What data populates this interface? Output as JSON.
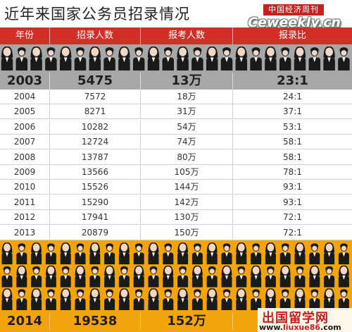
{
  "title": "近年来国家公务员招录情况",
  "logo": {
    "name": "中国经济周刊",
    "site": "Ceweekly.cn"
  },
  "columns": [
    "年份",
    "招录人数",
    "报考人数",
    "报录比"
  ],
  "highlight_top": {
    "year": "2003",
    "hired": "5475",
    "applicants": "13万",
    "ratio": "23:1"
  },
  "rows": [
    {
      "year": "2004",
      "hired": "7572",
      "applicants": "18万",
      "ratio": "24:1"
    },
    {
      "year": "2005",
      "hired": "8271",
      "applicants": "31万",
      "ratio": "37:1"
    },
    {
      "year": "2006",
      "hired": "10282",
      "applicants": "54万",
      "ratio": "53:1"
    },
    {
      "year": "2007",
      "hired": "12724",
      "applicants": "74万",
      "ratio": "58:1"
    },
    {
      "year": "2008",
      "hired": "13787",
      "applicants": "80万",
      "ratio": "58:1"
    },
    {
      "year": "2009",
      "hired": "13566",
      "applicants": "105万",
      "ratio": "78:1"
    },
    {
      "year": "2010",
      "hired": "15526",
      "applicants": "144万",
      "ratio": "93:1"
    },
    {
      "year": "2011",
      "hired": "15290",
      "applicants": "142万",
      "ratio": "93:1"
    },
    {
      "year": "2012",
      "hired": "17941",
      "applicants": "130万",
      "ratio": "72:1"
    },
    {
      "year": "2013",
      "hired": "20879",
      "applicants": "150万",
      "ratio": "72:1"
    }
  ],
  "highlight_bottom": {
    "year": "2014",
    "hired": "19538",
    "applicants": "152万",
    "ratio": ""
  },
  "watermark": {
    "name": "出国留学网",
    "url_prefix": "www.",
    "url_brand": "liuxue86",
    "url_suffix": ".com"
  },
  "colors": {
    "header": "#d32d28",
    "grey_band": "#a7a7a7",
    "orange_band": "#f3a40a",
    "people": "#1a1a1a"
  }
}
